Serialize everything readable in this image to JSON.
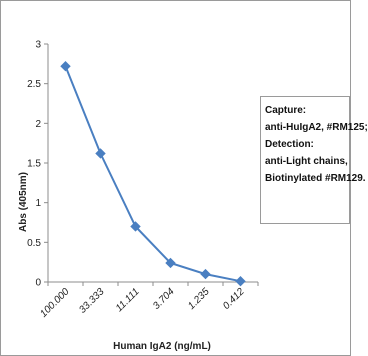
{
  "chart_data": {
    "type": "line",
    "categories": [
      "100.000",
      "33.333",
      "11.111",
      "3.704",
      "1.235",
      "0.412"
    ],
    "series": [
      {
        "values": [
          2.72,
          1.62,
          0.7,
          0.24,
          0.1,
          0.01
        ],
        "color": "#4a7fc1"
      }
    ],
    "xlabel": "Human IgA2 (ng/mL)",
    "ylabel": "Abs (405nm)",
    "ylim": [
      0,
      3
    ],
    "yticks": [
      0,
      0.5,
      1,
      1.5,
      2,
      2.5,
      3
    ],
    "ytick_labels": [
      "0",
      "0.5",
      "1",
      "1.5",
      "2",
      "2.5",
      "3"
    ],
    "grid": false,
    "marker": "diamond",
    "annotation": [
      "Capture:",
      "anti-HuIgA2, #RM125;",
      "Detection:",
      "anti-Light chains,",
      "Biotinylated #RM129."
    ]
  }
}
